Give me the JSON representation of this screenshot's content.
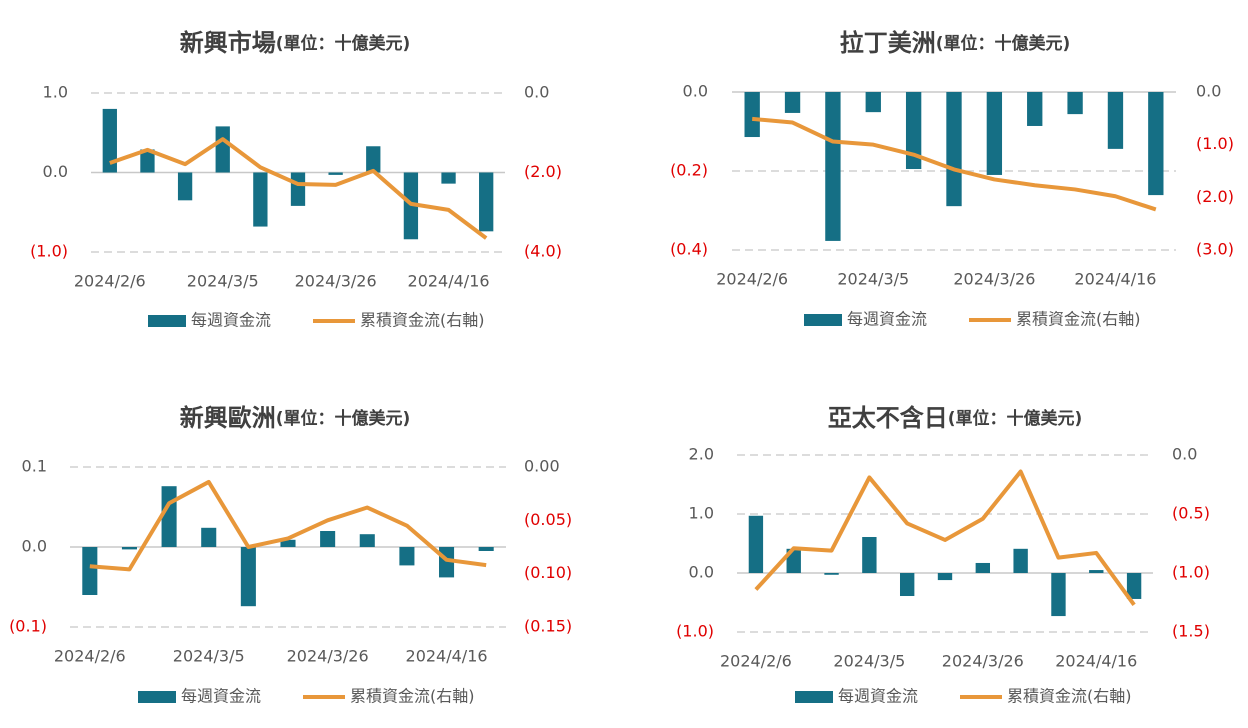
{
  "chart_data": [
    {
      "type": "combo",
      "title": "新興市場",
      "subtitle": "(單位：十億美元)",
      "categories": [
        "2024/2/6",
        null,
        null,
        "2024/3/5",
        null,
        null,
        "2024/3/26",
        null,
        null,
        "2024/4/16",
        null
      ],
      "series": [
        {
          "name": "每週資金流",
          "type": "bar",
          "color": "#156f85",
          "values": [
            0.8,
            0.29,
            -0.35,
            0.58,
            -0.68,
            -0.42,
            -0.03,
            0.33,
            -0.84,
            -0.14,
            -0.74
          ]
        },
        {
          "name": "累積資金流(右軸)",
          "type": "line",
          "axis": "y2",
          "color": "#e8973a",
          "values": [
            -1.76,
            -1.43,
            -1.79,
            -1.16,
            -1.87,
            -2.29,
            -2.31,
            -1.96,
            -2.79,
            -2.94,
            -3.65
          ]
        }
      ],
      "ylim": [
        -1,
        1
      ],
      "yticks": [
        {
          "value": 1,
          "label": "1.0"
        },
        {
          "value": 0,
          "label": "0.0"
        },
        {
          "value": -1,
          "label": "(1.0)"
        }
      ],
      "y2lim": [
        -4,
        0
      ],
      "y2ticks": [
        {
          "value": 0,
          "label": "0.0"
        },
        {
          "value": -2,
          "label": "(2.0)"
        },
        {
          "value": -4,
          "label": "(4.0)"
        }
      ],
      "grid": true,
      "legend": "bottom"
    },
    {
      "type": "combo",
      "title": "拉丁美洲",
      "subtitle": "(單位：十億美元)",
      "categories": [
        "2024/2/6",
        null,
        null,
        "2024/3/5",
        null,
        null,
        "2024/3/26",
        null,
        null,
        "2024/4/16",
        null
      ],
      "series": [
        {
          "name": "每週資金流",
          "type": "bar",
          "color": "#156f85",
          "values": [
            -0.114,
            -0.053,
            -0.377,
            -0.051,
            -0.195,
            -0.289,
            -0.21,
            -0.086,
            -0.056,
            -0.144,
            -0.261
          ]
        },
        {
          "name": "累積資金流(右軸)",
          "type": "line",
          "axis": "y2",
          "color": "#e8973a",
          "values": [
            -0.51,
            -0.58,
            -0.94,
            -1.0,
            -1.19,
            -1.47,
            -1.66,
            -1.77,
            -1.85,
            -1.98,
            -2.23
          ]
        }
      ],
      "ylim": [
        -0.4,
        0
      ],
      "yticks": [
        {
          "value": 0,
          "label": "0.0"
        },
        {
          "value": -0.2,
          "label": "(0.2)"
        },
        {
          "value": -0.4,
          "label": "(0.4)"
        }
      ],
      "y2lim": [
        -3,
        0
      ],
      "y2ticks": [
        {
          "value": 0,
          "label": "0.0"
        },
        {
          "value": -1,
          "label": "(1.0)"
        },
        {
          "value": -2,
          "label": "(2.0)"
        },
        {
          "value": -3,
          "label": "(3.0)"
        }
      ],
      "grid": true,
      "legend": "bottom"
    },
    {
      "type": "combo",
      "title": "新興歐洲",
      "subtitle": "(單位：十億美元)",
      "categories": [
        "2024/2/6",
        null,
        null,
        "2024/3/5",
        null,
        null,
        "2024/3/26",
        null,
        null,
        "2024/4/16",
        null
      ],
      "series": [
        {
          "name": "每週資金流",
          "type": "bar",
          "color": "#156f85",
          "values": [
            -0.06,
            -0.003,
            0.076,
            0.024,
            -0.074,
            0.009,
            0.02,
            0.016,
            -0.023,
            -0.038,
            -0.005
          ]
        },
        {
          "name": "累積資金流(右軸)",
          "type": "line",
          "axis": "y2",
          "color": "#e8973a",
          "values": [
            -0.093,
            -0.096,
            -0.034,
            -0.014,
            -0.075,
            -0.067,
            -0.05,
            -0.038,
            -0.055,
            -0.087,
            -0.092
          ]
        }
      ],
      "ylim": [
        -0.1,
        0.1
      ],
      "yticks": [
        0.1,
        {
          "value": 0,
          "label": "0.0"
        },
        {
          "value": -0.1,
          "label": "(0.1)"
        }
      ],
      "y2lim": [
        -0.15,
        0
      ],
      "y2ticks": [
        {
          "value": 0,
          "label": "0.00"
        },
        {
          "value": -0.05,
          "label": "(0.05)"
        },
        {
          "value": -0.1,
          "label": "(0.10)"
        },
        {
          "value": -0.15,
          "label": "(0.15)"
        }
      ],
      "grid": true,
      "legend": "bottom"
    },
    {
      "type": "combo",
      "title": "亞太不含日",
      "subtitle": "(單位：十億美元)",
      "categories": [
        "2024/2/6",
        null,
        null,
        "2024/3/5",
        null,
        null,
        "2024/3/26",
        null,
        null,
        "2024/4/16",
        null
      ],
      "series": [
        {
          "name": "每週資金流",
          "type": "bar",
          "color": "#156f85",
          "values": [
            0.97,
            0.41,
            -0.03,
            0.61,
            -0.39,
            -0.12,
            0.17,
            0.41,
            -0.73,
            0.05,
            -0.44
          ]
        },
        {
          "name": "累積資金流(右軸)",
          "type": "line",
          "axis": "y2",
          "color": "#e8973a",
          "values": [
            -1.14,
            -0.79,
            -0.81,
            -0.19,
            -0.58,
            -0.72,
            -0.54,
            -0.14,
            -0.87,
            -0.83,
            -1.27
          ]
        }
      ],
      "ylim": [
        -1,
        2
      ],
      "yticks": [
        {
          "value": 2,
          "label": "2.0"
        },
        {
          "value": 1,
          "label": "1.0"
        },
        {
          "value": 0,
          "label": "0.0"
        },
        {
          "value": -1,
          "label": "(1.0)"
        }
      ],
      "y2lim": [
        -1.5,
        0
      ],
      "y2ticks": [
        {
          "value": 0,
          "label": "0.0"
        },
        {
          "value": -0.5,
          "label": "(0.5)"
        },
        {
          "value": -1,
          "label": "(1.0)"
        },
        {
          "value": -1.5,
          "label": "(1.5)"
        }
      ],
      "grid": true,
      "legend": "bottom"
    }
  ]
}
